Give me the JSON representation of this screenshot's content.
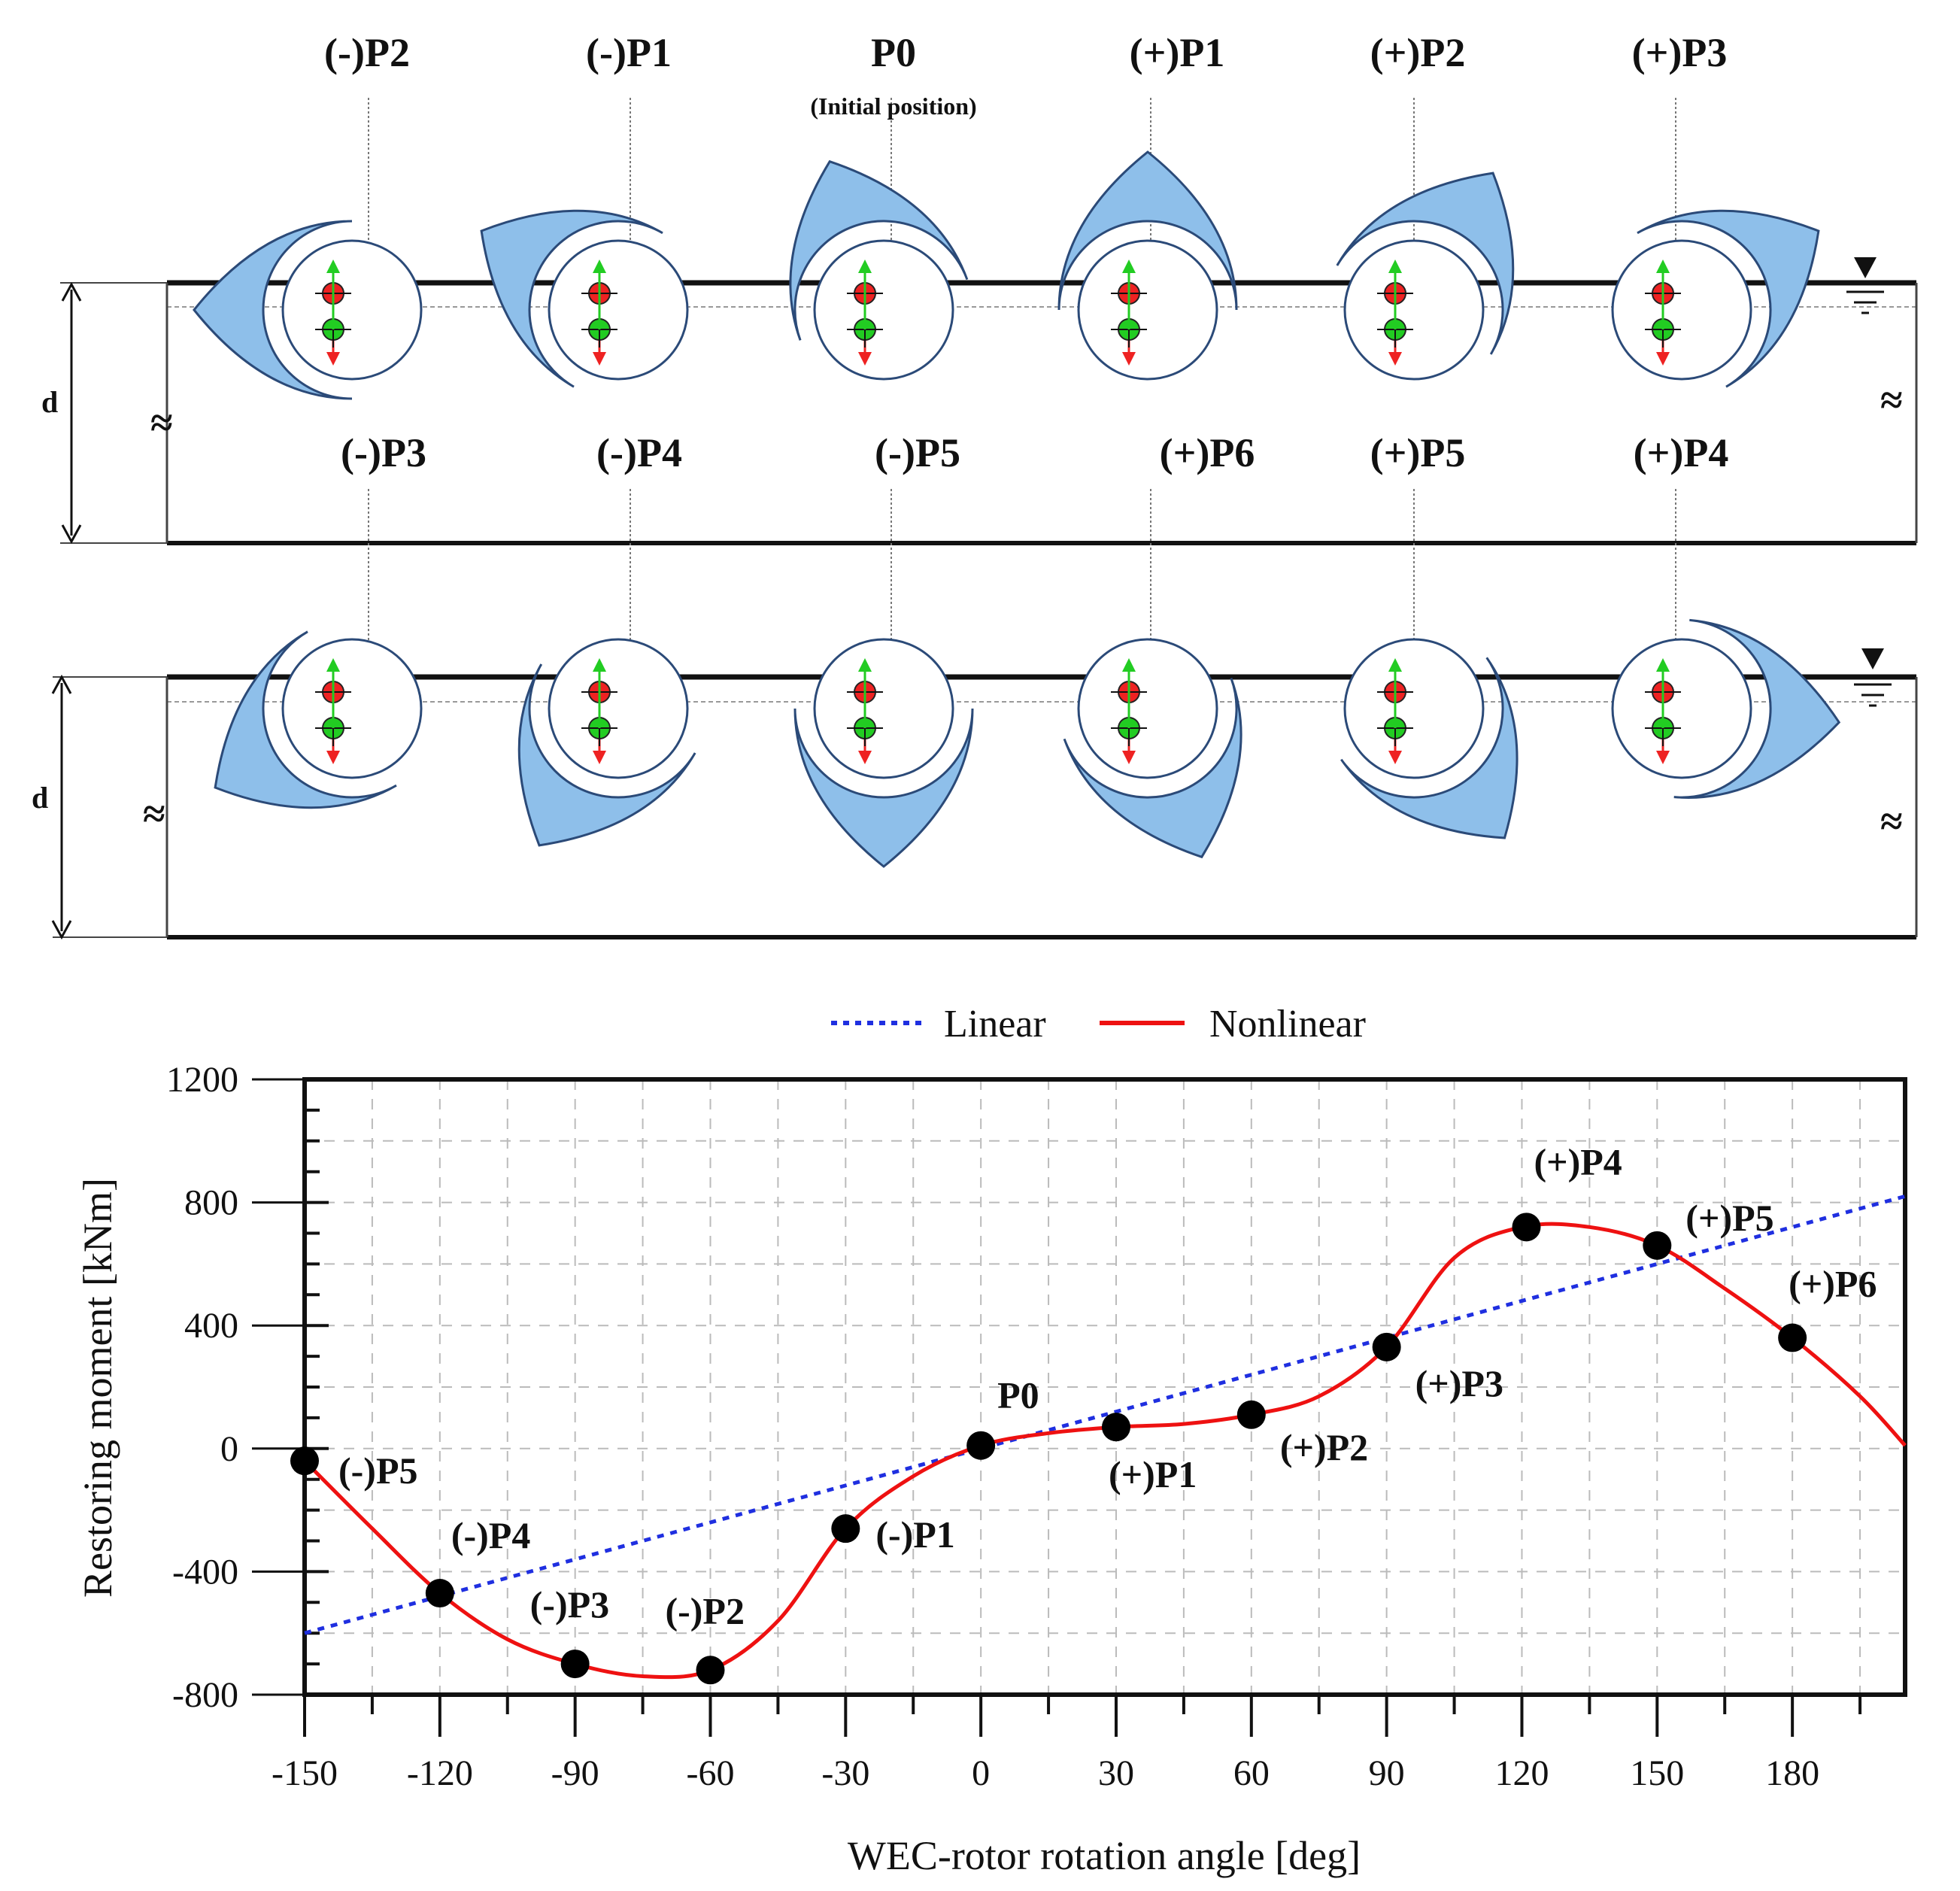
{
  "diagram": {
    "top_row_labels": [
      "(-)P2",
      "(-)P1",
      "P0",
      "(+)P1",
      "(+)P2",
      "(+)P3"
    ],
    "top_row_subtitle": "(Initial position)",
    "bottom_row_labels": [
      "(-)P3",
      "(-)P4",
      "(-)P5",
      "(+)P6",
      "(+)P5",
      "(+)P4"
    ],
    "depth_label": "d",
    "colors": {
      "rotor_fill": "#8EBFEA",
      "buoyancy_arrow": "#22CC22",
      "weight_arrow": "#EE2222"
    }
  },
  "chart_data": {
    "type": "line",
    "xlabel": "WEC-rotor rotation angle [deg]",
    "ylabel": "Restoring moment [kNm]",
    "xlim": [
      -150,
      205
    ],
    "ylim": [
      -800,
      1200
    ],
    "x_ticks": [
      -150,
      -120,
      -90,
      -60,
      -30,
      0,
      30,
      60,
      90,
      120,
      150,
      180
    ],
    "y_ticks": [
      -800,
      -400,
      0,
      400,
      800,
      1200
    ],
    "grid": true,
    "legend": {
      "position": "top-center",
      "entries": [
        "Linear",
        "Nonlinear"
      ]
    },
    "series": [
      {
        "name": "Linear",
        "style": "dotted",
        "color": "#1F2FE0",
        "x": [
          -150,
          205
        ],
        "y": [
          -600,
          820
        ]
      },
      {
        "name": "Nonlinear",
        "style": "solid",
        "color": "#EE1111",
        "x": [
          -150,
          -135,
          -120,
          -105,
          -90,
          -75,
          -60,
          -45,
          -30,
          -15,
          0,
          15,
          30,
          45,
          60,
          75,
          90,
          105,
          120,
          135,
          150,
          165,
          180,
          195,
          205
        ],
        "y": [
          -40,
          -260,
          -470,
          -620,
          -700,
          -740,
          -720,
          -560,
          -260,
          -90,
          10,
          50,
          70,
          80,
          110,
          170,
          330,
          620,
          720,
          720,
          660,
          520,
          360,
          170,
          10
        ]
      }
    ],
    "markers": [
      {
        "label": "(-)P5",
        "x": -150,
        "y": -40
      },
      {
        "label": "(-)P4",
        "x": -120,
        "y": -470
      },
      {
        "label": "(-)P3",
        "x": -90,
        "y": -700
      },
      {
        "label": "(-)P2",
        "x": -60,
        "y": -720
      },
      {
        "label": "(-)P1",
        "x": -30,
        "y": -260
      },
      {
        "label": "P0",
        "x": 0,
        "y": 10
      },
      {
        "label": "(+)P1",
        "x": 30,
        "y": 70
      },
      {
        "label": "(+)P2",
        "x": 60,
        "y": 110
      },
      {
        "label": "(+)P3",
        "x": 90,
        "y": 330
      },
      {
        "label": "(+)P4",
        "x": 121,
        "y": 720
      },
      {
        "label": "(+)P5",
        "x": 150,
        "y": 660
      },
      {
        "label": "(+)P6",
        "x": 180,
        "y": 360
      }
    ]
  }
}
